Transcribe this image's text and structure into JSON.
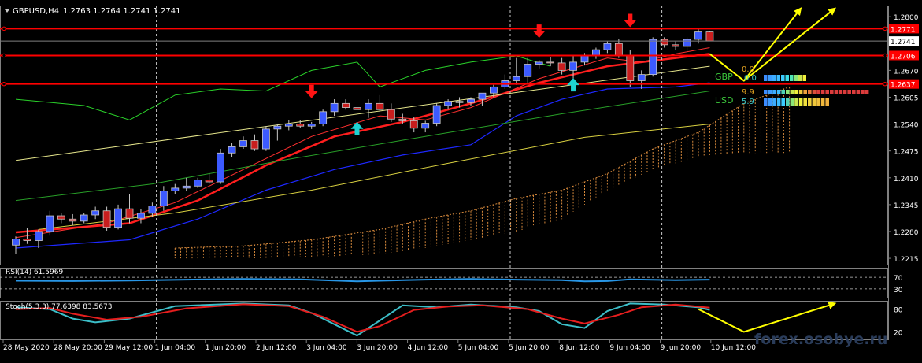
{
  "chart_data": {
    "type": "candlestick",
    "header": {
      "symbol": "GBPUSD,H4",
      "ohlc": "1.2763 1.2764 1.2741 1.2741"
    },
    "price_axis": {
      "ylim": [
        1.2198,
        1.2827
      ],
      "ticks": [
        "1.2800",
        "1.2670",
        "1.2605",
        "1.2540",
        "1.2475",
        "1.2410",
        "1.2345",
        "1.2280",
        "1.2215"
      ],
      "tick_values": [
        1.28,
        1.267,
        1.2605,
        1.254,
        1.2475,
        1.241,
        1.2345,
        1.228,
        1.2215
      ],
      "current_price": "1.2741",
      "current_value": 1.2741
    },
    "horizontal_levels": [
      {
        "label": "1.2771",
        "value": 1.2771
      },
      {
        "label": "1.2706",
        "value": 1.2706
      },
      {
        "label": "1.2637",
        "value": 1.2637
      }
    ],
    "time_axis": [
      "28 May 2020",
      "28 May 20:00",
      "29 May 12:00",
      "1 Jun 04:00",
      "1 Jun 20:00",
      "2 Jun 12:00",
      "3 Jun 04:00",
      "3 Jun 20:00",
      "4 Jun 12:00",
      "5 Jun 04:00",
      "5 Jun 20:00",
      "8 Jun 12:00",
      "9 Jun 04:00",
      "9 Jun 20:00",
      "10 Jun 12:00"
    ],
    "vertical_separators": [
      "1 Jun 04:00",
      "5 Jun 20:00",
      "9 Jun 20:00"
    ],
    "candles": [
      {
        "o": 1.2247,
        "h": 1.2268,
        "l": 1.2226,
        "c": 1.2262
      },
      {
        "o": 1.2262,
        "h": 1.2288,
        "l": 1.225,
        "c": 1.2258
      },
      {
        "o": 1.2258,
        "h": 1.2285,
        "l": 1.224,
        "c": 1.228
      },
      {
        "o": 1.228,
        "h": 1.233,
        "l": 1.227,
        "c": 1.2318
      },
      {
        "o": 1.2318,
        "h": 1.2325,
        "l": 1.23,
        "c": 1.231
      },
      {
        "o": 1.231,
        "h": 1.2322,
        "l": 1.2295,
        "c": 1.2305
      },
      {
        "o": 1.2305,
        "h": 1.2325,
        "l": 1.23,
        "c": 1.232
      },
      {
        "o": 1.232,
        "h": 1.234,
        "l": 1.231,
        "c": 1.233
      },
      {
        "o": 1.233,
        "h": 1.234,
        "l": 1.2282,
        "c": 1.229
      },
      {
        "o": 1.229,
        "h": 1.2345,
        "l": 1.2285,
        "c": 1.2335
      },
      {
        "o": 1.2335,
        "h": 1.237,
        "l": 1.23,
        "c": 1.2312
      },
      {
        "o": 1.2312,
        "h": 1.2335,
        "l": 1.23,
        "c": 1.2324
      },
      {
        "o": 1.2324,
        "h": 1.235,
        "l": 1.2315,
        "c": 1.2342
      },
      {
        "o": 1.2342,
        "h": 1.239,
        "l": 1.233,
        "c": 1.2378
      },
      {
        "o": 1.2378,
        "h": 1.2395,
        "l": 1.237,
        "c": 1.2385
      },
      {
        "o": 1.2385,
        "h": 1.241,
        "l": 1.2378,
        "c": 1.239
      },
      {
        "o": 1.239,
        "h": 1.241,
        "l": 1.2385,
        "c": 1.2405
      },
      {
        "o": 1.2405,
        "h": 1.242,
        "l": 1.2395,
        "c": 1.24
      },
      {
        "o": 1.24,
        "h": 1.248,
        "l": 1.2395,
        "c": 1.247
      },
      {
        "o": 1.247,
        "h": 1.2495,
        "l": 1.246,
        "c": 1.2485
      },
      {
        "o": 1.2485,
        "h": 1.251,
        "l": 1.248,
        "c": 1.25
      },
      {
        "o": 1.25,
        "h": 1.2515,
        "l": 1.2475,
        "c": 1.248
      },
      {
        "o": 1.248,
        "h": 1.2535,
        "l": 1.2475,
        "c": 1.2528
      },
      {
        "o": 1.2528,
        "h": 1.254,
        "l": 1.25,
        "c": 1.2535
      },
      {
        "o": 1.2535,
        "h": 1.255,
        "l": 1.2525,
        "c": 1.254
      },
      {
        "o": 1.254,
        "h": 1.255,
        "l": 1.253,
        "c": 1.2535
      },
      {
        "o": 1.2535,
        "h": 1.2545,
        "l": 1.2528,
        "c": 1.254
      },
      {
        "o": 1.254,
        "h": 1.2575,
        "l": 1.2535,
        "c": 1.257
      },
      {
        "o": 1.257,
        "h": 1.26,
        "l": 1.256,
        "c": 1.259
      },
      {
        "o": 1.259,
        "h": 1.26,
        "l": 1.2575,
        "c": 1.258
      },
      {
        "o": 1.258,
        "h": 1.2595,
        "l": 1.256,
        "c": 1.2575
      },
      {
        "o": 1.2575,
        "h": 1.26,
        "l": 1.2555,
        "c": 1.259
      },
      {
        "o": 1.259,
        "h": 1.261,
        "l": 1.257,
        "c": 1.2575
      },
      {
        "o": 1.2575,
        "h": 1.259,
        "l": 1.2545,
        "c": 1.2552
      },
      {
        "o": 1.2552,
        "h": 1.2565,
        "l": 1.254,
        "c": 1.2548
      },
      {
        "o": 1.2548,
        "h": 1.2558,
        "l": 1.252,
        "c": 1.253
      },
      {
        "o": 1.253,
        "h": 1.2548,
        "l": 1.252,
        "c": 1.2542
      },
      {
        "o": 1.2542,
        "h": 1.259,
        "l": 1.2535,
        "c": 1.2585
      },
      {
        "o": 1.2585,
        "h": 1.26,
        "l": 1.2575,
        "c": 1.2595
      },
      {
        "o": 1.2595,
        "h": 1.2605,
        "l": 1.258,
        "c": 1.2592
      },
      {
        "o": 1.2592,
        "h": 1.2605,
        "l": 1.2585,
        "c": 1.26
      },
      {
        "o": 1.26,
        "h": 1.2615,
        "l": 1.2585,
        "c": 1.2615
      },
      {
        "o": 1.2615,
        "h": 1.2635,
        "l": 1.2605,
        "c": 1.263
      },
      {
        "o": 1.263,
        "h": 1.266,
        "l": 1.2625,
        "c": 1.2645
      },
      {
        "o": 1.2645,
        "h": 1.27,
        "l": 1.2635,
        "c": 1.2655
      },
      {
        "o": 1.2655,
        "h": 1.27,
        "l": 1.264,
        "c": 1.2685
      },
      {
        "o": 1.2685,
        "h": 1.2695,
        "l": 1.2675,
        "c": 1.269
      },
      {
        "o": 1.269,
        "h": 1.2702,
        "l": 1.268,
        "c": 1.2688
      },
      {
        "o": 1.2688,
        "h": 1.27,
        "l": 1.266,
        "c": 1.267
      },
      {
        "o": 1.267,
        "h": 1.2705,
        "l": 1.264,
        "c": 1.269
      },
      {
        "o": 1.269,
        "h": 1.2712,
        "l": 1.2682,
        "c": 1.2705
      },
      {
        "o": 1.2705,
        "h": 1.2725,
        "l": 1.2698,
        "c": 1.272
      },
      {
        "o": 1.272,
        "h": 1.274,
        "l": 1.2712,
        "c": 1.2735
      },
      {
        "o": 1.2735,
        "h": 1.2745,
        "l": 1.27,
        "c": 1.2705
      },
      {
        "o": 1.2705,
        "h": 1.272,
        "l": 1.263,
        "c": 1.2645
      },
      {
        "o": 1.2645,
        "h": 1.267,
        "l": 1.2625,
        "c": 1.266
      },
      {
        "o": 1.266,
        "h": 1.275,
        "l": 1.2655,
        "c": 1.2745
      },
      {
        "o": 1.2745,
        "h": 1.275,
        "l": 1.2725,
        "c": 1.2732
      },
      {
        "o": 1.2732,
        "h": 1.274,
        "l": 1.272,
        "c": 1.2728
      },
      {
        "o": 1.2728,
        "h": 1.275,
        "l": 1.2715,
        "c": 1.2745
      },
      {
        "o": 1.2745,
        "h": 1.277,
        "l": 1.2735,
        "c": 1.2763
      },
      {
        "o": 1.2763,
        "h": 1.2764,
        "l": 1.2741,
        "c": 1.2741
      }
    ],
    "moving_averages": [
      {
        "color": "#ff1e1e",
        "width": 2.5,
        "points": [
          [
            0,
            1.2278
          ],
          [
            10,
            1.23
          ],
          [
            16,
            1.2355
          ],
          [
            22,
            1.244
          ],
          [
            28,
            1.251
          ],
          [
            34,
            1.2545
          ],
          [
            40,
            1.259
          ],
          [
            46,
            1.264
          ],
          [
            52,
            1.268
          ],
          [
            58,
            1.27
          ],
          [
            61,
            1.271
          ]
        ]
      },
      {
        "color": "#ff3030",
        "width": 1,
        "points": [
          [
            0,
            1.2265
          ],
          [
            8,
            1.23
          ],
          [
            14,
            1.235
          ],
          [
            20,
            1.243
          ],
          [
            26,
            1.251
          ],
          [
            32,
            1.256
          ],
          [
            36,
            1.255
          ],
          [
            40,
            1.258
          ],
          [
            46,
            1.265
          ],
          [
            52,
            1.27
          ],
          [
            55,
            1.269
          ],
          [
            58,
            1.271
          ],
          [
            61,
            1.2725
          ]
        ]
      },
      {
        "color": "#1e28ff",
        "width": 1.2,
        "points": [
          [
            0,
            1.224
          ],
          [
            10,
            1.226
          ],
          [
            16,
            1.231
          ],
          [
            22,
            1.238
          ],
          [
            28,
            1.243
          ],
          [
            34,
            1.2465
          ],
          [
            40,
            1.249
          ],
          [
            44,
            1.256
          ],
          [
            48,
            1.26
          ],
          [
            52,
            1.2625
          ],
          [
            58,
            1.263
          ],
          [
            61,
            1.264
          ]
        ]
      },
      {
        "color": "#e6e68c",
        "width": 1,
        "points": [
          [
            0,
            1.2452
          ],
          [
            61,
            1.268
          ]
        ]
      },
      {
        "color": "#d8d040",
        "width": 1,
        "points": [
          [
            2,
            1.2285
          ],
          [
            14,
            1.2325
          ],
          [
            26,
            1.238
          ],
          [
            38,
            1.2445
          ],
          [
            50,
            1.2508
          ],
          [
            61,
            1.254
          ]
        ]
      },
      {
        "color": "#28a028",
        "width": 1,
        "points": [
          [
            0,
            1.2355
          ],
          [
            12,
            1.2395
          ],
          [
            24,
            1.2455
          ],
          [
            36,
            1.251
          ],
          [
            48,
            1.2565
          ],
          [
            61,
            1.262
          ]
        ]
      },
      {
        "color": "#2ad22a",
        "width": 1,
        "points": [
          [
            0,
            1.26
          ],
          [
            6,
            1.2585
          ],
          [
            10,
            1.255
          ],
          [
            14,
            1.261
          ],
          [
            18,
            1.2625
          ],
          [
            22,
            1.262
          ],
          [
            26,
            1.267
          ],
          [
            30,
            1.269
          ],
          [
            32,
            1.263
          ],
          [
            36,
            1.267
          ],
          [
            40,
            1.269
          ],
          [
            44,
            1.2705
          ],
          [
            47,
            1.268
          ]
        ]
      }
    ],
    "cloud": {
      "start": 14,
      "end": 68,
      "top": [
        [
          14,
          1.224
        ],
        [
          20,
          1.2245
        ],
        [
          26,
          1.226
        ],
        [
          32,
          1.2285
        ],
        [
          36,
          1.231
        ],
        [
          40,
          1.233
        ],
        [
          44,
          1.236
        ],
        [
          48,
          1.238
        ],
        [
          52,
          1.242
        ],
        [
          56,
          1.248
        ],
        [
          60,
          1.252
        ],
        [
          64,
          1.259
        ],
        [
          68,
          1.263
        ]
      ],
      "bottom": [
        [
          14,
          1.2215
        ],
        [
          20,
          1.2215
        ],
        [
          26,
          1.2218
        ],
        [
          32,
          1.2225
        ],
        [
          36,
          1.224
        ],
        [
          40,
          1.226
        ],
        [
          44,
          1.228
        ],
        [
          48,
          1.231
        ],
        [
          52,
          1.238
        ],
        [
          56,
          1.243
        ],
        [
          60,
          1.246
        ],
        [
          64,
          1.247
        ],
        [
          68,
          1.247
        ]
      ]
    },
    "signals": [
      {
        "type": "sell",
        "index": 26,
        "value": 1.2616
      },
      {
        "type": "sell",
        "index": 46,
        "value": 1.2762
      },
      {
        "type": "sell",
        "index": 54,
        "value": 1.2788
      },
      {
        "type": "buy",
        "index": 30,
        "value": 1.2532
      },
      {
        "type": "buy",
        "index": 49,
        "value": 1.2638
      }
    ],
    "forecast_arrows": [
      {
        "color": "#ffff00",
        "points": [
          [
            61,
            1.271
          ],
          [
            64,
            1.2645
          ],
          [
            69,
            1.282
          ]
        ]
      },
      {
        "color": "#ffff00",
        "points": [
          [
            64,
            1.2645
          ],
          [
            72,
            1.282
          ]
        ]
      }
    ],
    "currency_strength": [
      {
        "currency": "GBP",
        "label_color": "#3cc83c",
        "value": "0.0",
        "value_color": "#e0a020",
        "bar_end": "0.0"
      },
      {
        "currency": "USD",
        "label_color": "#3cc83c",
        "value": "9.9",
        "value_color": "#e0a020",
        "bar_end": "5.9"
      }
    ],
    "rsi": {
      "label": "RSI(14) 61.5969",
      "levels": [
        "70",
        "30"
      ],
      "ylim": [
        0,
        100
      ],
      "values": [
        [
          0,
          58
        ],
        [
          5,
          57
        ],
        [
          10,
          59
        ],
        [
          15,
          62
        ],
        [
          20,
          64
        ],
        [
          25,
          63
        ],
        [
          30,
          56
        ],
        [
          32,
          58
        ],
        [
          36,
          62
        ],
        [
          40,
          64
        ],
        [
          44,
          62
        ],
        [
          48,
          60
        ],
        [
          50,
          56
        ],
        [
          52,
          57
        ],
        [
          54,
          63
        ],
        [
          58,
          60
        ],
        [
          61,
          62
        ]
      ]
    },
    "stochastic": {
      "label": "Stoch(5,3,3) 77.6398 83.5673",
      "levels": [
        "80",
        "20"
      ],
      "ylim": [
        0,
        100
      ],
      "k": [
        [
          0,
          85
        ],
        [
          3,
          80
        ],
        [
          5,
          55
        ],
        [
          7,
          45
        ],
        [
          10,
          55
        ],
        [
          14,
          88
        ],
        [
          20,
          95
        ],
        [
          24,
          90
        ],
        [
          26,
          70
        ],
        [
          28,
          40
        ],
        [
          30,
          10
        ],
        [
          32,
          50
        ],
        [
          34,
          90
        ],
        [
          37,
          85
        ],
        [
          40,
          92
        ],
        [
          44,
          85
        ],
        [
          46,
          75
        ],
        [
          48,
          40
        ],
        [
          50,
          30
        ],
        [
          52,
          75
        ],
        [
          54,
          95
        ],
        [
          57,
          92
        ],
        [
          60,
          85
        ],
        [
          61,
          78
        ]
      ],
      "d": [
        [
          0,
          80
        ],
        [
          3,
          83
        ],
        [
          5,
          68
        ],
        [
          8,
          52
        ],
        [
          11,
          60
        ],
        [
          15,
          82
        ],
        [
          20,
          93
        ],
        [
          24,
          88
        ],
        [
          27,
          60
        ],
        [
          30,
          20
        ],
        [
          32,
          35
        ],
        [
          35,
          78
        ],
        [
          38,
          87
        ],
        [
          41,
          90
        ],
        [
          45,
          80
        ],
        [
          48,
          55
        ],
        [
          50,
          42
        ],
        [
          53,
          65
        ],
        [
          55,
          85
        ],
        [
          58,
          92
        ],
        [
          61,
          84
        ]
      ],
      "forecast": [
        [
          60,
          80
        ],
        [
          64,
          20
        ],
        [
          72,
          95
        ]
      ]
    },
    "watermark": "forex.osobye.ru"
  }
}
